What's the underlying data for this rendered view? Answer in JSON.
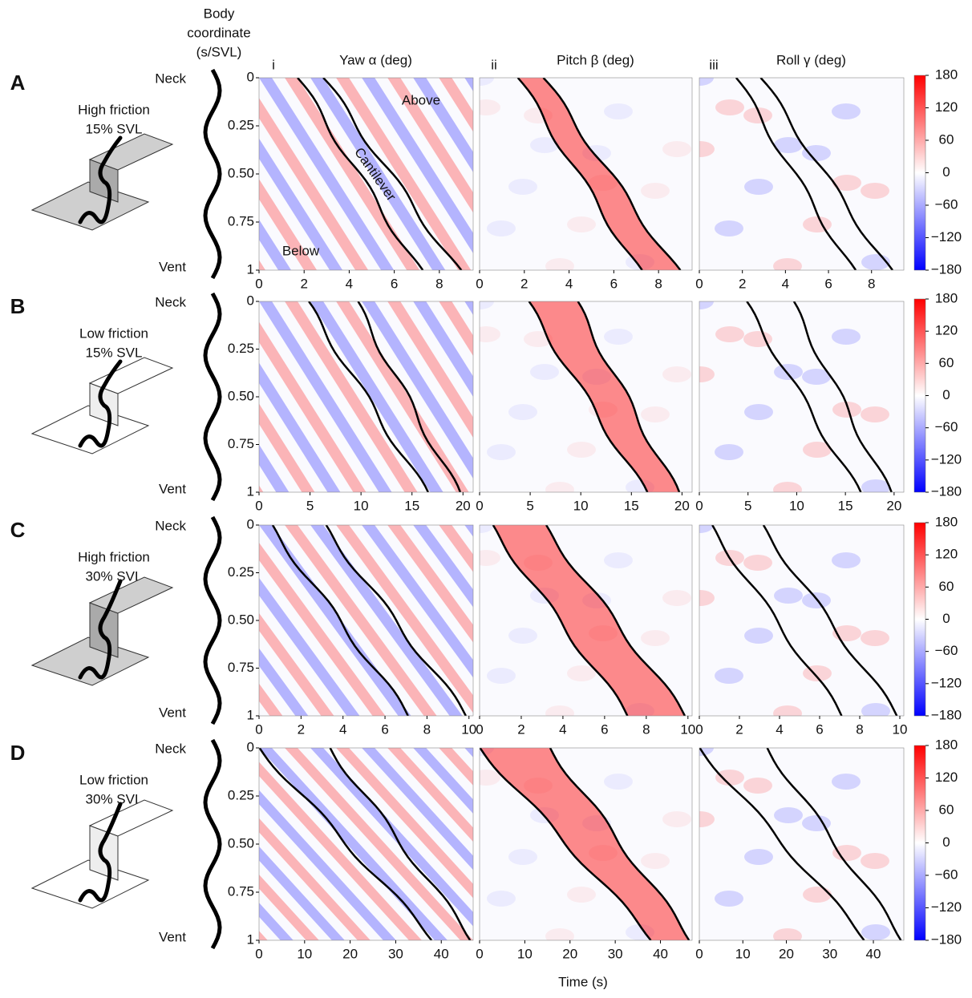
{
  "chart_data": {
    "type": "heatmap",
    "body_axis_title": [
      "Body",
      "coordinate",
      "(s/SVL)"
    ],
    "y_end_labels": {
      "top": "Neck",
      "bottom": "Vent"
    },
    "columns": [
      {
        "label": "i",
        "title": "Yaw α (deg)"
      },
      {
        "label": "ii",
        "title": "Pitch β (deg)"
      },
      {
        "label": "iii",
        "title": "Roll γ (deg)"
      }
    ],
    "rows": [
      {
        "label": "A",
        "condition": [
          "High friction",
          "15% SVL"
        ],
        "xlim": [
          0,
          9.5
        ],
        "xticks": [
          0,
          2,
          4,
          6,
          8
        ]
      },
      {
        "label": "B",
        "condition": [
          "Low friction",
          "15% SVL"
        ],
        "xlim": [
          0,
          21
        ],
        "xticks": [
          0,
          5,
          10,
          15,
          20
        ]
      },
      {
        "label": "C",
        "condition": [
          "High friction",
          "30% SVL"
        ],
        "xlim": [
          0,
          10.2
        ],
        "xticks": [
          0,
          2,
          4,
          6,
          8,
          10
        ]
      },
      {
        "label": "D",
        "condition": [
          "Low friction",
          "30% SVL"
        ],
        "xlim": [
          0,
          47
        ],
        "xticks": [
          0,
          10,
          20,
          30,
          40
        ]
      }
    ],
    "ylim": [
      0,
      1
    ],
    "yticks": [
      0,
      0.25,
      {
        "value": 0.5,
        "label": "0.50"
      },
      0.75,
      1
    ],
    "xlabel": "Time (s)",
    "colorbar": {
      "lim": [
        -180,
        180
      ],
      "colors": [
        "#0000ff",
        "#ffffff",
        "#ff0000"
      ],
      "ticks": [
        180,
        120,
        60,
        0,
        {
          "value": -60,
          "label": "−60"
        },
        {
          "value": -120,
          "label": "−120"
        },
        {
          "value": -180,
          "label": "−180"
        }
      ]
    },
    "annotations": {
      "above": "Above",
      "below": "Below",
      "cantilever": "Cantilever"
    }
  }
}
